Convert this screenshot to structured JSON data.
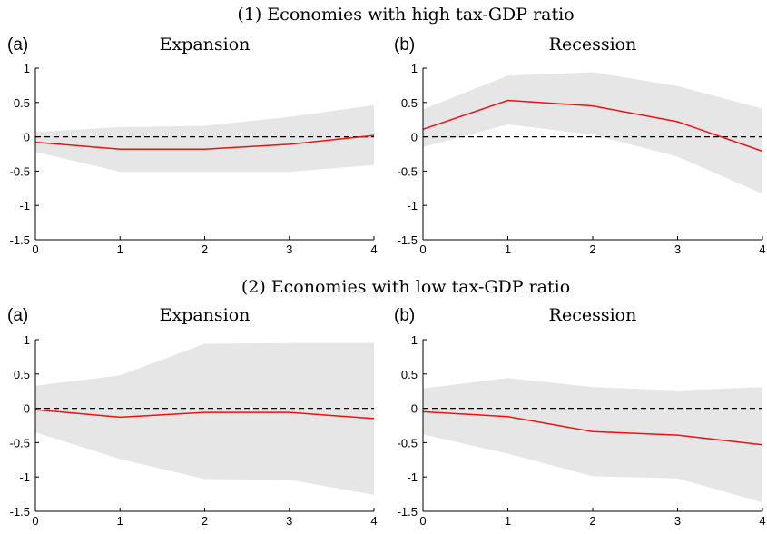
{
  "sections": [
    {
      "title": "(1) Economies with high tax-GDP ratio"
    },
    {
      "title": "(2) Economies with low tax-GDP ratio"
    }
  ],
  "colors": {
    "band": "#e6e6e6",
    "line": "#ee1111",
    "zero": "#000000",
    "axis": "#000000"
  },
  "chart_data": [
    {
      "type": "line",
      "section": 0,
      "label": "(a)",
      "title": "Expansion",
      "x": [
        0,
        1,
        2,
        3,
        4
      ],
      "xlim": [
        0,
        4
      ],
      "ylim": [
        -1.5,
        1
      ],
      "xticks": [
        "0",
        "1",
        "2",
        "3",
        "4"
      ],
      "yticks": [
        "1",
        "0.5",
        "0",
        "-0.5",
        "-1",
        "-1.5"
      ],
      "series": [
        {
          "role": "point estimate",
          "values": [
            -0.08,
            -0.18,
            -0.18,
            -0.11,
            0.02
          ]
        },
        {
          "role": "upper band",
          "values": [
            0.07,
            0.14,
            0.16,
            0.29,
            0.46
          ]
        },
        {
          "role": "lower band",
          "values": [
            -0.22,
            -0.51,
            -0.51,
            -0.51,
            -0.41
          ]
        }
      ],
      "reference_line": 0
    },
    {
      "type": "line",
      "section": 0,
      "label": "(b)",
      "title": "Recession",
      "x": [
        0,
        1,
        2,
        3,
        4
      ],
      "xlim": [
        0,
        4
      ],
      "ylim": [
        -1.5,
        1
      ],
      "xticks": [
        "0",
        "1",
        "2",
        "3",
        "4"
      ],
      "yticks": [
        "1",
        "0.5",
        "0",
        "-0.5",
        "-1",
        "-1.5"
      ],
      "series": [
        {
          "role": "point estimate",
          "values": [
            0.11,
            0.53,
            0.45,
            0.22,
            -0.21
          ]
        },
        {
          "role": "upper band",
          "values": [
            0.4,
            0.89,
            0.94,
            0.74,
            0.41
          ]
        },
        {
          "role": "lower band",
          "values": [
            -0.15,
            0.18,
            0.03,
            -0.29,
            -0.83
          ]
        }
      ],
      "reference_line": 0
    },
    {
      "type": "line",
      "section": 1,
      "label": "(a)",
      "title": "Expansion",
      "x": [
        0,
        1,
        2,
        3,
        4
      ],
      "xlim": [
        0,
        4
      ],
      "ylim": [
        -1.5,
        1
      ],
      "xticks": [
        "0",
        "1",
        "2",
        "3",
        "4"
      ],
      "yticks": [
        "1",
        "0.5",
        "0",
        "-0.5",
        "-1",
        "-1.5"
      ],
      "series": [
        {
          "role": "point estimate",
          "values": [
            -0.02,
            -0.13,
            -0.06,
            -0.06,
            -0.15
          ]
        },
        {
          "role": "upper band",
          "values": [
            0.33,
            0.48,
            0.94,
            0.95,
            0.95
          ]
        },
        {
          "role": "lower band",
          "values": [
            -0.35,
            -0.74,
            -1.03,
            -1.04,
            -1.26
          ]
        }
      ],
      "reference_line": 0
    },
    {
      "type": "line",
      "section": 1,
      "label": "(b)",
      "title": "Recession",
      "x": [
        0,
        1,
        2,
        3,
        4
      ],
      "xlim": [
        0,
        4
      ],
      "ylim": [
        -1.5,
        1
      ],
      "xticks": [
        "0",
        "1",
        "2",
        "3",
        "4"
      ],
      "yticks": [
        "1",
        "0.5",
        "0",
        "-0.5",
        "-1",
        "-1.5"
      ],
      "series": [
        {
          "role": "point estimate",
          "values": [
            -0.05,
            -0.12,
            -0.34,
            -0.39,
            -0.53
          ]
        },
        {
          "role": "upper band",
          "values": [
            0.29,
            0.44,
            0.31,
            0.26,
            0.31
          ]
        },
        {
          "role": "lower band",
          "values": [
            -0.38,
            -0.66,
            -0.99,
            -1.02,
            -1.37
          ]
        }
      ],
      "reference_line": 0
    }
  ]
}
